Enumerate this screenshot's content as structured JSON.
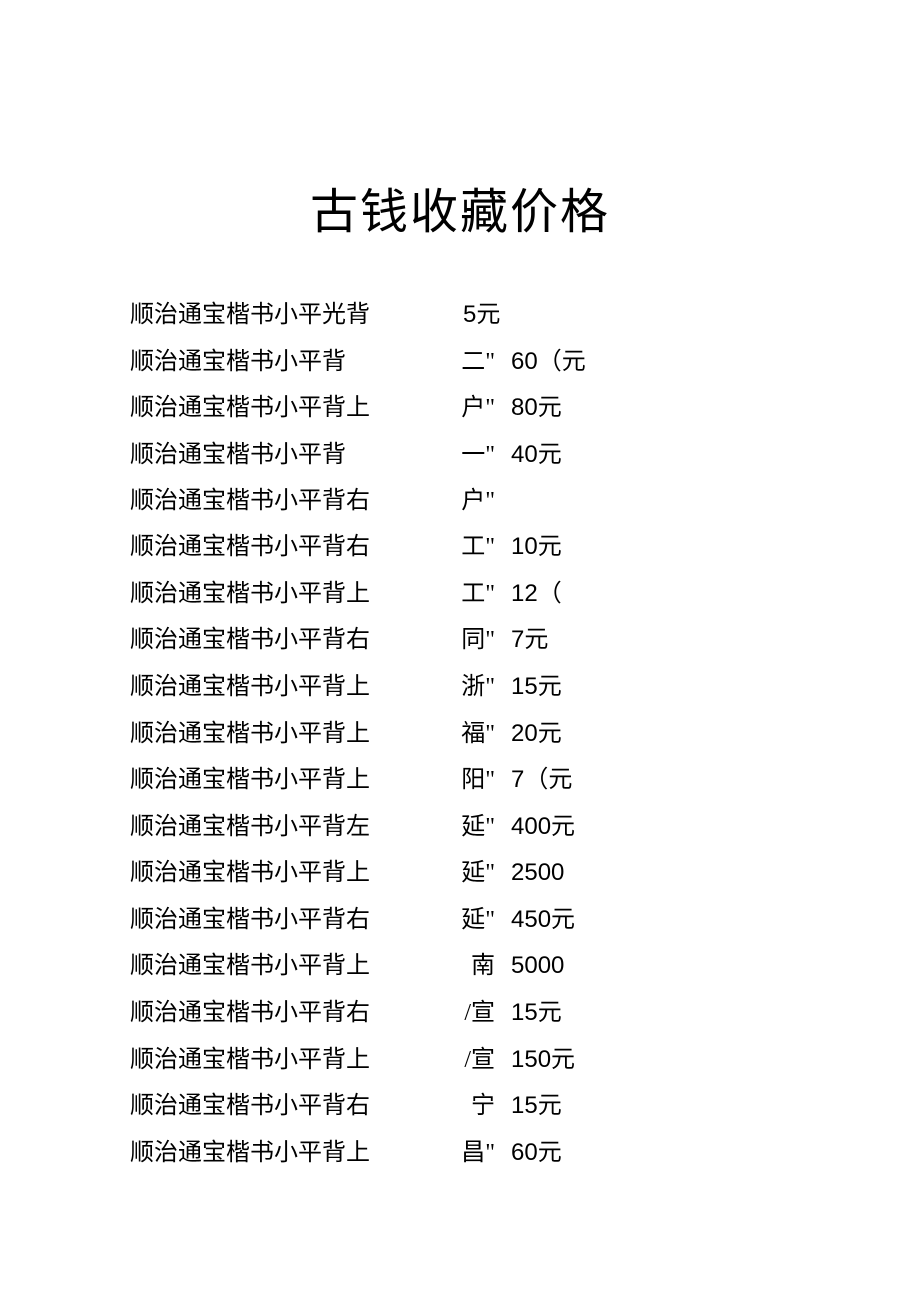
{
  "title": "古钱收藏价格",
  "rows": [
    {
      "name": "顺治通宝楷书小平光背",
      "mark": "",
      "price": "5元"
    },
    {
      "name": "顺治通宝楷书小平背",
      "mark": "二\"",
      "price": "60（元"
    },
    {
      "name": "顺治通宝楷书小平背上",
      "mark": "户\"",
      "price": "80元"
    },
    {
      "name": "顺治通宝楷书小平背",
      "mark": "一\"",
      "price": "40元"
    },
    {
      "name": "顺治通宝楷书小平背右",
      "mark": "户\"",
      "price": ""
    },
    {
      "name": "顺治通宝楷书小平背右",
      "mark": "工\"",
      "price": "10元"
    },
    {
      "name": "顺治通宝楷书小平背上",
      "mark": "工\"",
      "price": "12（"
    },
    {
      "name": "顺治通宝楷书小平背右",
      "mark": "同\"",
      "price": "7元"
    },
    {
      "name": "顺治通宝楷书小平背上",
      "mark": "浙\"",
      "price": "15元"
    },
    {
      "name": "顺治通宝楷书小平背上",
      "mark": "福\"",
      "price": "20元"
    },
    {
      "name": "顺治通宝楷书小平背上",
      "mark": "阳\"",
      "price": "7（元"
    },
    {
      "name": "顺治通宝楷书小平背左",
      "mark": "延\"",
      "price": "400元"
    },
    {
      "name": "顺治通宝楷书小平背上",
      "mark": "延\"",
      "price": "2500"
    },
    {
      "name": "顺治通宝楷书小平背右",
      "mark": "延\"",
      "price": "450元"
    },
    {
      "name": "顺治通宝楷书小平背上",
      "mark": "南",
      "price": "5000"
    },
    {
      "name": "顺治通宝楷书小平背右",
      "mark": "/宣",
      "price": "15元"
    },
    {
      "name": "顺治通宝楷书小平背上",
      "mark": "/宣",
      "price": "150元"
    },
    {
      "name": "顺治通宝楷书小平背右",
      "mark": "宁",
      "price": "15元"
    },
    {
      "name": "顺治通宝楷书小平背上",
      "mark": "昌\"",
      "price": "60元"
    }
  ],
  "style": {
    "background_color": "#ffffff",
    "text_color": "#000000",
    "title_fontsize": 48,
    "body_fontsize": 24,
    "font_family": "SimSun"
  }
}
